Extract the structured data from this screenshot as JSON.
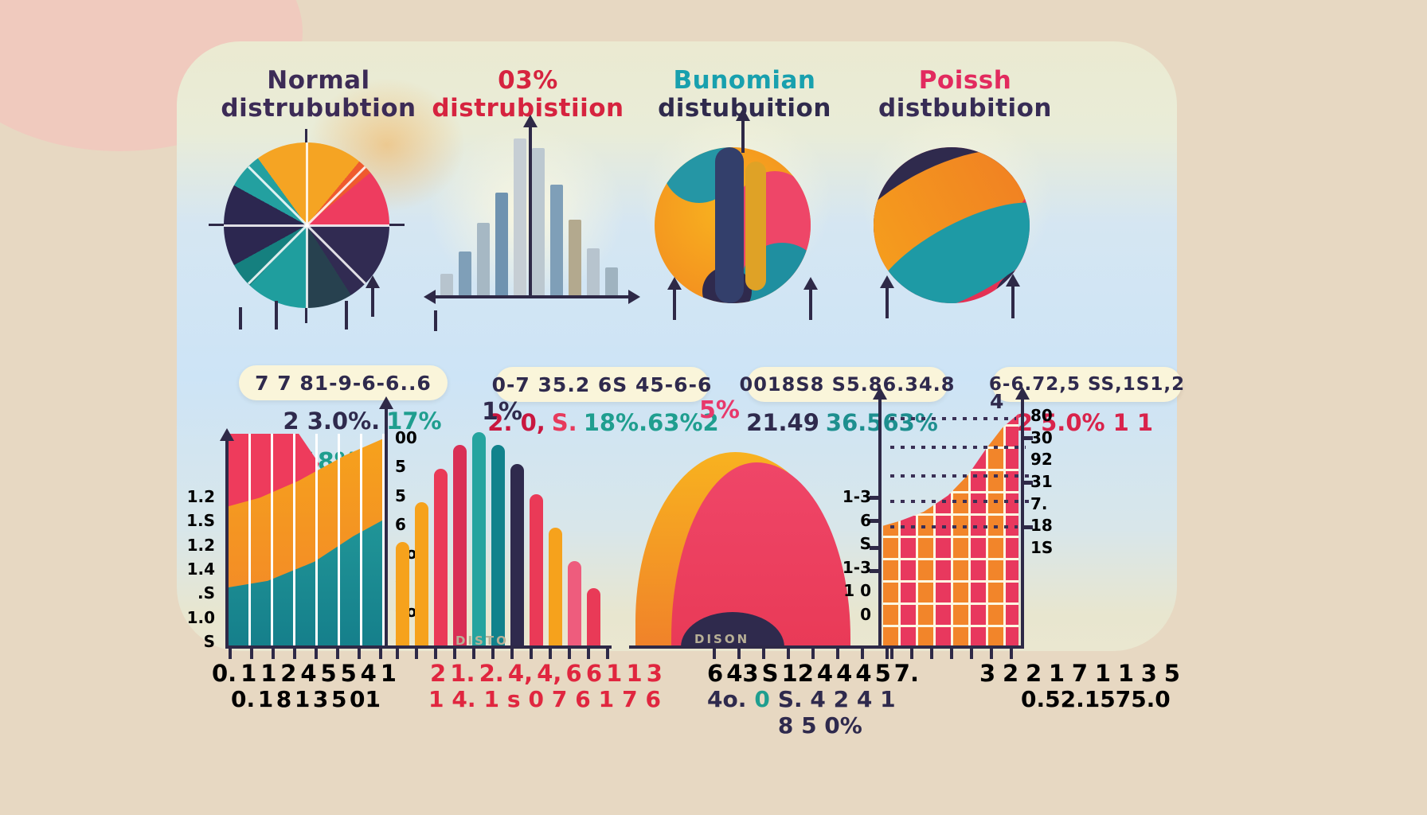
{
  "page": {
    "outer_bg": "#e7d8c2",
    "card_top": "#ebead1",
    "card_blue": "#cde4f6",
    "pill_bg": "#faf5da",
    "navy": "#2f2a4d",
    "teal": "#1f9e8f",
    "red": "#e0263f",
    "orange": "#f6a21c",
    "crimson": "#e8385e"
  },
  "columns": [
    {
      "title_line1": "Normal",
      "title_line2": "distrububtion",
      "title1_color": "#3c2b56",
      "title2_color": "#3c2b56",
      "pill": "7 7 81-9-6-6..6",
      "sub_parts": [
        {
          "text": "2 3.0%.",
          "color": "#2f2a4d"
        },
        {
          "text": "17%",
          "color": "#1f9e8f"
        }
      ]
    },
    {
      "title_line1": "03%",
      "title_line2": "distrubistiion",
      "title1_color": "#d6233f",
      "title2_color": "#d6233f",
      "pill": "0-7 35.2 6S 45-6-6",
      "sub_parts": [
        {
          "text": "2. 0,",
          "color": "#c9173f"
        },
        {
          "text": "S.",
          "color": "#e73a5c"
        },
        {
          "text": "18%.63%2",
          "color": "#1f9e8f"
        }
      ]
    },
    {
      "title_line1": "Bunomian",
      "title_line2": "distubuition",
      "title1_color": "#18a0ae",
      "title2_color": "#2f2a4d",
      "pill": "0018S8 S5.86.34.8",
      "sub_parts": [
        {
          "text": "21.49",
          "color": "#2f2a4d"
        },
        {
          "text": "36.563%",
          "color": "#1e8f8f"
        }
      ]
    },
    {
      "title_line1": "Poissh",
      "title_line2": "distbubition",
      "title1_color": "#e22a5e",
      "title2_color": "#372c55",
      "pill": "6-6.72,5 SS,1S1,2",
      "sub_parts": [
        {
          "text": "2 5.0% 1 1",
          "color": "#d9234b"
        }
      ]
    }
  ],
  "b1": {
    "top_label": "1.",
    "pct_label": "18%",
    "left_labels": [
      "1.2",
      "1.S",
      "1.2",
      "1.4",
      ".S",
      "1.0",
      "S"
    ],
    "right_labels": [
      "00",
      "5",
      "5",
      "6",
      "8o",
      "0",
      "0o",
      "0"
    ],
    "x_row1": [
      "0.",
      "1",
      "1",
      "2",
      "4",
      "5",
      "5",
      "4",
      "1"
    ],
    "x_row2": [
      "0.",
      "1",
      "8",
      "1",
      "3",
      "5",
      "01"
    ]
  },
  "b2": {
    "pct_label": "1%",
    "x_row1": [
      "2",
      "1.",
      "2.",
      "4,",
      "4,",
      "6",
      "6",
      "1",
      "1",
      "3"
    ],
    "x_row2": [
      "1",
      "4.",
      "1",
      "s",
      "0",
      "7",
      "6",
      "1",
      "7",
      "6"
    ]
  },
  "b3": {
    "pct_label": "5%",
    "x_row1": [
      "6",
      "43",
      "S",
      "12",
      "4",
      "4",
      "4",
      "5",
      "7."
    ],
    "x_row2_parts": [
      {
        "text": "4o.",
        "color": "#2f2a4d"
      },
      {
        "text": "0",
        "color": "#1f9e8f"
      },
      {
        "text": "S. 4 2 4 1 8 5 0%",
        "color": "#2f2a4d"
      }
    ]
  },
  "b4": {
    "top_right_label": "4",
    "left_labels": [
      "1-3",
      "6",
      "S",
      "1-3",
      "1 0",
      "0"
    ],
    "right_labels": [
      "80",
      "30",
      "92",
      "31",
      "7.",
      "18",
      "1S"
    ],
    "x_row1": [
      "3",
      "2",
      "2",
      "1",
      "7",
      "1",
      "1",
      "3",
      "5"
    ],
    "x_row2": [
      "0.",
      "5",
      "2.",
      "1",
      "5",
      "7",
      "5.0"
    ]
  },
  "footer": {
    "under_b2": "DISTO",
    "under_b3": "DISON"
  },
  "chart_data": [
    {
      "type": "pie",
      "title": "Normal distrububtion",
      "slices": [
        {
          "value": 11,
          "color": "#f5a423"
        },
        {
          "value": 3,
          "color": "#ef5a2e"
        },
        {
          "value": 11,
          "color": "#ee3c5f"
        },
        {
          "value": 16,
          "color": "#312b52"
        },
        {
          "value": 9,
          "color": "#27414f"
        },
        {
          "value": 12,
          "color": "#1f9e9e"
        },
        {
          "value": 5,
          "color": "#15807f"
        },
        {
          "value": 16,
          "color": "#2c2750"
        },
        {
          "value": 7,
          "color": "#23a0a0"
        },
        {
          "value": 10,
          "color": "#f5a423"
        }
      ]
    },
    {
      "type": "bar",
      "title": "03% distrubistiion",
      "note": "symmetric histogram around central vertical axis",
      "values": [
        28,
        56,
        92,
        130,
        198,
        186,
        140,
        96,
        60,
        36
      ],
      "colors": [
        "#b7c4ce",
        "#7f9fb8",
        "#a6b8c4",
        "#6f93b0",
        "#c6ced4",
        "#bcc8d0",
        "#7f9fb8",
        "#b3a98e",
        "#b7c4ce",
        "#9fb3c0"
      ]
    },
    {
      "type": "pie",
      "title": "Bunomian distubuition",
      "note": "abstract overlapping color blobs inside circle",
      "colors": [
        "#f2861f",
        "#e8385e",
        "#333f6b",
        "#dfa226",
        "#2596a5",
        "#ee4668",
        "#2f2a4d"
      ]
    },
    {
      "type": "pie",
      "title": "Poissh distbubition",
      "note": "abstract diagonal swirl bands inside circle",
      "colors": [
        "#2f2a4d",
        "#f6a21c",
        "#1e9aa5",
        "#e43154"
      ]
    },
    {
      "type": "area",
      "title": "bottom-left stacked area",
      "x": [
        0,
        1,
        2,
        3,
        4,
        5,
        6,
        7,
        8
      ],
      "series": [
        {
          "name": "teal",
          "values": [
            75,
            78,
            84,
            95,
            110,
            125,
            140,
            152,
            160
          ]
        },
        {
          "name": "orange",
          "values": [
            150,
            158,
            170,
            185,
            200,
            215,
            228,
            240,
            248
          ]
        },
        {
          "name": "red",
          "values": [
            268,
            262,
            248,
            215,
            185,
            0,
            0,
            0,
            0
          ]
        }
      ],
      "note": "values = height above baseline, px"
    },
    {
      "type": "bar",
      "title": "bottom bell-shaped bars",
      "values": [
        130,
        180,
        222,
        252,
        268,
        252,
        228,
        190,
        148,
        106,
        72
      ],
      "colors": [
        "#f6a21c",
        "#f6a21c",
        "#ea3a57",
        "#d92f55",
        "#25a49f",
        "#11828c",
        "#2f2a4d",
        "#ea3a57",
        "#f6a21c",
        "#ee5c7d",
        "#e93a57"
      ]
    },
    {
      "type": "area",
      "title": "bottom bell curves",
      "note": "two overlapping smooth bells + small navy mound",
      "series": [
        {
          "name": "orange",
          "peak": 245
        },
        {
          "name": "crimson",
          "peak": 232
        },
        {
          "name": "navy",
          "peak": 44
        }
      ]
    },
    {
      "type": "area",
      "title": "bottom-right rising curve over checker grid",
      "x": [
        0,
        1,
        2,
        3,
        4,
        5,
        6,
        7
      ],
      "values": [
        153,
        158,
        170,
        190,
        222,
        258,
        282,
        293
      ]
    }
  ]
}
